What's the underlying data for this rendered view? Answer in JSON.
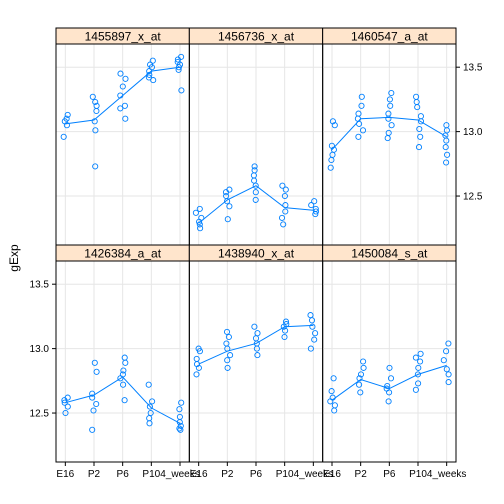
{
  "chart_data": {
    "type": "scatter",
    "ylabel": "gExp",
    "xlabel": "",
    "categories": [
      "E16",
      "P2",
      "P6",
      "P10",
      "4_weeks"
    ],
    "y_ticks": [
      12.5,
      13.0,
      13.5
    ],
    "ylim": [
      12.12,
      13.68
    ],
    "grid": true,
    "colors": {
      "point": "#0080ff",
      "line": "#0080ff",
      "strip": "#ffe5cc",
      "grid": "#e6e6e6"
    },
    "panels": [
      {
        "name": "1455897_x_at",
        "points": [
          [
            12.96,
            13.05,
            13.08,
            13.1,
            13.13
          ],
          [
            12.73,
            13.01,
            13.08,
            13.16,
            13.2,
            13.23,
            13.27
          ],
          [
            13.1,
            13.18,
            13.2,
            13.28,
            13.35,
            13.41,
            13.45
          ],
          [
            13.4,
            13.42,
            13.44,
            13.47,
            13.5,
            13.52,
            13.55
          ],
          [
            13.32,
            13.48,
            13.5,
            13.52,
            13.54,
            13.56,
            13.58
          ]
        ],
        "trend": [
          13.06,
          13.09,
          13.28,
          13.47,
          13.5
        ]
      },
      {
        "name": "1456736_x_at",
        "points": [
          [
            12.25,
            12.28,
            12.3,
            12.33,
            12.37,
            12.4
          ],
          [
            12.32,
            12.42,
            12.46,
            12.5,
            12.53,
            12.55
          ],
          [
            12.47,
            12.53,
            12.58,
            12.62,
            12.66,
            12.7,
            12.73
          ],
          [
            12.28,
            12.33,
            12.38,
            12.43,
            12.5,
            12.55,
            12.58
          ],
          [
            12.36,
            12.38,
            12.4,
            12.43,
            12.46
          ]
        ],
        "trend": [
          12.29,
          12.47,
          12.58,
          12.41,
          12.39
        ]
      },
      {
        "name": "1460547_a_at",
        "points": [
          [
            12.72,
            12.78,
            12.82,
            12.86,
            12.89,
            13.05,
            13.08
          ],
          [
            12.96,
            13.01,
            13.06,
            13.1,
            13.14,
            13.2,
            13.27
          ],
          [
            12.95,
            12.99,
            13.05,
            13.1,
            13.14,
            13.2,
            13.25,
            13.3
          ],
          [
            12.88,
            12.96,
            13.02,
            13.08,
            13.12,
            13.19,
            13.23,
            13.27
          ],
          [
            12.76,
            12.82,
            12.88,
            12.93,
            12.97,
            13.01,
            13.05
          ]
        ],
        "trend": [
          12.86,
          13.1,
          13.11,
          13.09,
          12.96
        ]
      },
      {
        "name": "1426384_a_at",
        "points": [
          [
            12.5,
            12.55,
            12.58,
            12.6,
            12.62
          ],
          [
            12.37,
            12.52,
            12.57,
            12.62,
            12.65,
            12.82,
            12.89
          ],
          [
            12.6,
            12.72,
            12.77,
            12.8,
            12.83,
            12.89,
            12.93
          ],
          [
            12.42,
            12.46,
            12.5,
            12.55,
            12.59,
            12.72
          ],
          [
            12.37,
            12.38,
            12.4,
            12.43,
            12.47,
            12.53,
            12.58
          ]
        ],
        "trend": [
          12.58,
          12.64,
          12.78,
          12.54,
          12.42
        ]
      },
      {
        "name": "1438940_x_at",
        "points": [
          [
            12.8,
            12.85,
            12.88,
            12.92,
            12.98,
            13.0
          ],
          [
            12.85,
            12.91,
            12.95,
            13.0,
            13.04,
            13.09,
            13.13
          ],
          [
            12.95,
            13.0,
            13.04,
            13.08,
            13.12,
            13.17
          ],
          [
            13.09,
            13.14,
            13.17,
            13.19,
            13.21
          ],
          [
            13.0,
            13.07,
            13.12,
            13.17,
            13.22,
            13.26
          ]
        ],
        "trend": [
          12.88,
          12.98,
          13.04,
          13.17,
          13.18
        ]
      },
      {
        "name": "1450084_s_at",
        "points": [
          [
            12.52,
            12.56,
            12.59,
            12.62,
            12.67,
            12.77
          ],
          [
            12.66,
            12.72,
            12.77,
            12.8,
            12.85,
            12.9
          ],
          [
            12.59,
            12.66,
            12.69,
            12.71,
            12.77,
            12.85
          ],
          [
            12.68,
            12.73,
            12.8,
            12.85,
            12.9,
            12.93,
            12.96
          ],
          [
            12.74,
            12.8,
            12.84,
            12.91,
            12.98,
            13.04
          ]
        ],
        "trend": [
          12.6,
          12.76,
          12.69,
          12.8,
          12.87
        ]
      }
    ]
  }
}
